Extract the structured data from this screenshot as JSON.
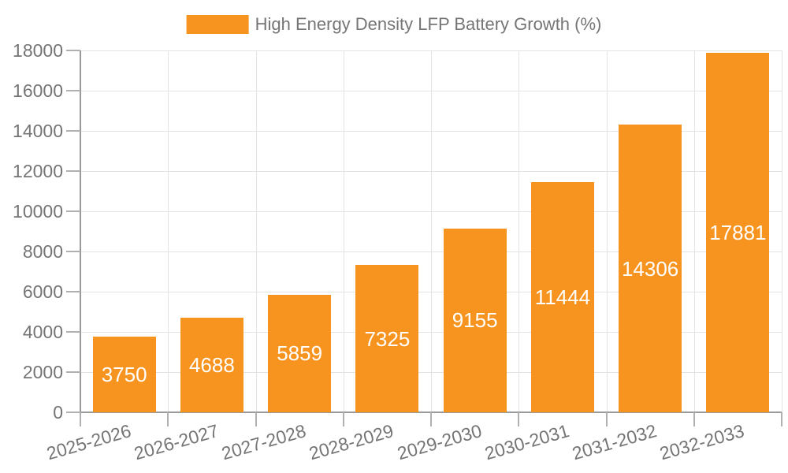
{
  "legend": {
    "label": "High Energy Density LFP Battery Growth (%)"
  },
  "colors": {
    "bar": "#F79420",
    "bar_label": "#FFFFFF",
    "axis": "#9A9A9A",
    "tick": "#B0B0B0",
    "grid": "#E3E3E3",
    "text": "#757575"
  },
  "chart_data": {
    "type": "bar",
    "categories": [
      "2025-2026",
      "2026-2027",
      "2027-2028",
      "2028-2029",
      "2029-2030",
      "2030-2031",
      "2031-2032",
      "2032-2033"
    ],
    "series": [
      {
        "name": "High Energy Density LFP Battery Growth (%)",
        "values": [
          3750,
          4688,
          5859,
          7325,
          9155,
          11444,
          14306,
          17881
        ]
      }
    ],
    "title": "",
    "xlabel": "",
    "ylabel": "",
    "ylim": [
      0,
      18000
    ],
    "ytick_step": 2000,
    "yticks": [
      0,
      2000,
      4000,
      6000,
      8000,
      10000,
      12000,
      14000,
      16000,
      18000
    ],
    "grid": true,
    "legend_position": "top-center",
    "value_labels": "inside-center",
    "xtick_rotation_deg": -16
  }
}
